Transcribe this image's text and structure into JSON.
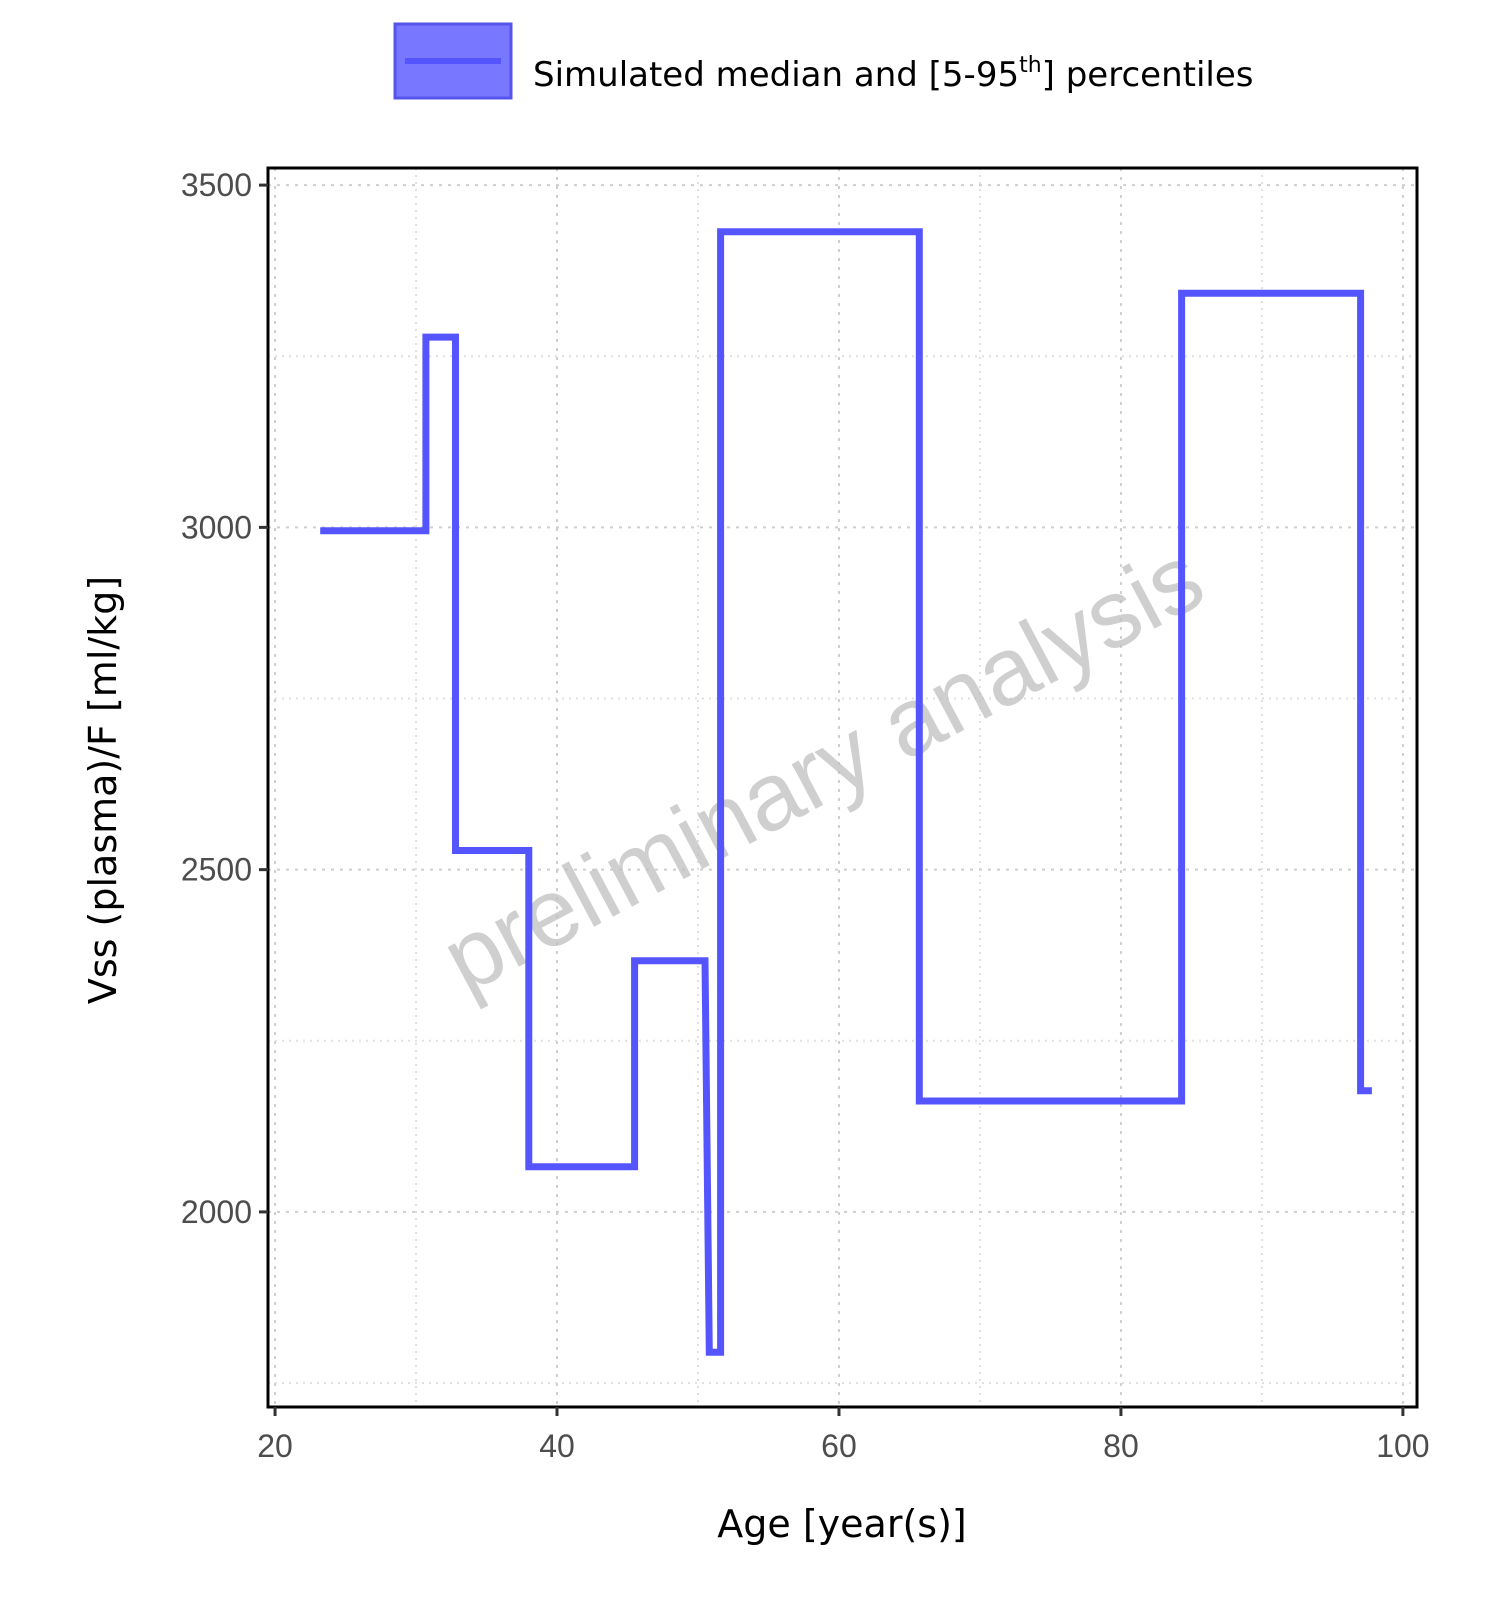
{
  "chart_data": {
    "type": "line",
    "legend": {
      "label_main": "Simulated median and [5-95",
      "label_sup": "th",
      "label_end": "] percentiles",
      "placement": "top"
    },
    "xlabel": "Age [year(s)]",
    "ylabel": "Vss (plasma)/F [ml/kg]",
    "watermark": "preliminary analysis",
    "xlim": [
      19.5,
      101
    ],
    "ylim": [
      1715,
      3525
    ],
    "xticks": [
      20,
      40,
      60,
      80,
      100
    ],
    "yticks": [
      2000,
      2500,
      3000,
      3500
    ],
    "xminor": [
      30,
      50,
      70,
      90
    ],
    "yminor": [
      1750,
      2250,
      2750,
      3250
    ],
    "grid": true,
    "line_color": "#5555ff",
    "series": [
      {
        "name": "Simulated median and [5-95th] percentiles",
        "step": true,
        "points": [
          [
            23.2,
            2995
          ],
          [
            30.7,
            2995
          ],
          [
            30.7,
            3278
          ],
          [
            32.8,
            3278
          ],
          [
            32.8,
            2528
          ],
          [
            38.0,
            2528
          ],
          [
            38.0,
            2066
          ],
          [
            45.5,
            2066
          ],
          [
            45.5,
            2367
          ],
          [
            50.5,
            2367
          ],
          [
            50.8,
            1795
          ],
          [
            51.6,
            1795
          ],
          [
            51.6,
            3432
          ],
          [
            65.7,
            3432
          ],
          [
            65.7,
            2162
          ],
          [
            84.3,
            2162
          ],
          [
            84.3,
            3342
          ],
          [
            97.0,
            3342
          ],
          [
            97.0,
            2177
          ],
          [
            97.8,
            2177
          ]
        ]
      }
    ]
  }
}
